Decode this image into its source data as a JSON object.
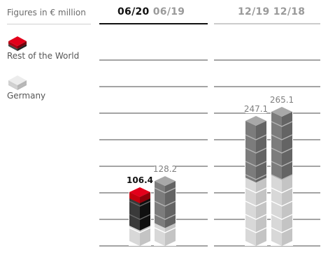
{
  "units_label": "Figures in € million",
  "legend": {
    "rest_of_world": "Rest of the World",
    "germany": "Germany"
  },
  "colors": {
    "rest_of_world": "#d7000f",
    "germany": "#d4d4d4",
    "previous_total": "#7f7f7f",
    "current_total_text": "#111111"
  },
  "chart_data": {
    "type": "bar",
    "stacked": true,
    "groups": [
      {
        "header_current": "06/20",
        "header_previous": "06/19",
        "categories": [
          "06/20",
          "06/19"
        ]
      },
      {
        "header_current": "12/19",
        "header_previous": "12/18",
        "categories": [
          "12/19",
          "12/18"
        ]
      }
    ],
    "categories": [
      "06/20",
      "06/19",
      "12/19",
      "12/18"
    ],
    "series": [
      {
        "name": "Germany",
        "values": [
          40,
          45,
          135,
          140
        ]
      },
      {
        "name": "Rest of the World",
        "values": [
          66.4,
          83.2,
          112.1,
          125.1
        ]
      }
    ],
    "totals": [
      106.4,
      128.2,
      247.1,
      265.1
    ],
    "ylim": [
      0,
      265.1
    ],
    "grid": true
  }
}
